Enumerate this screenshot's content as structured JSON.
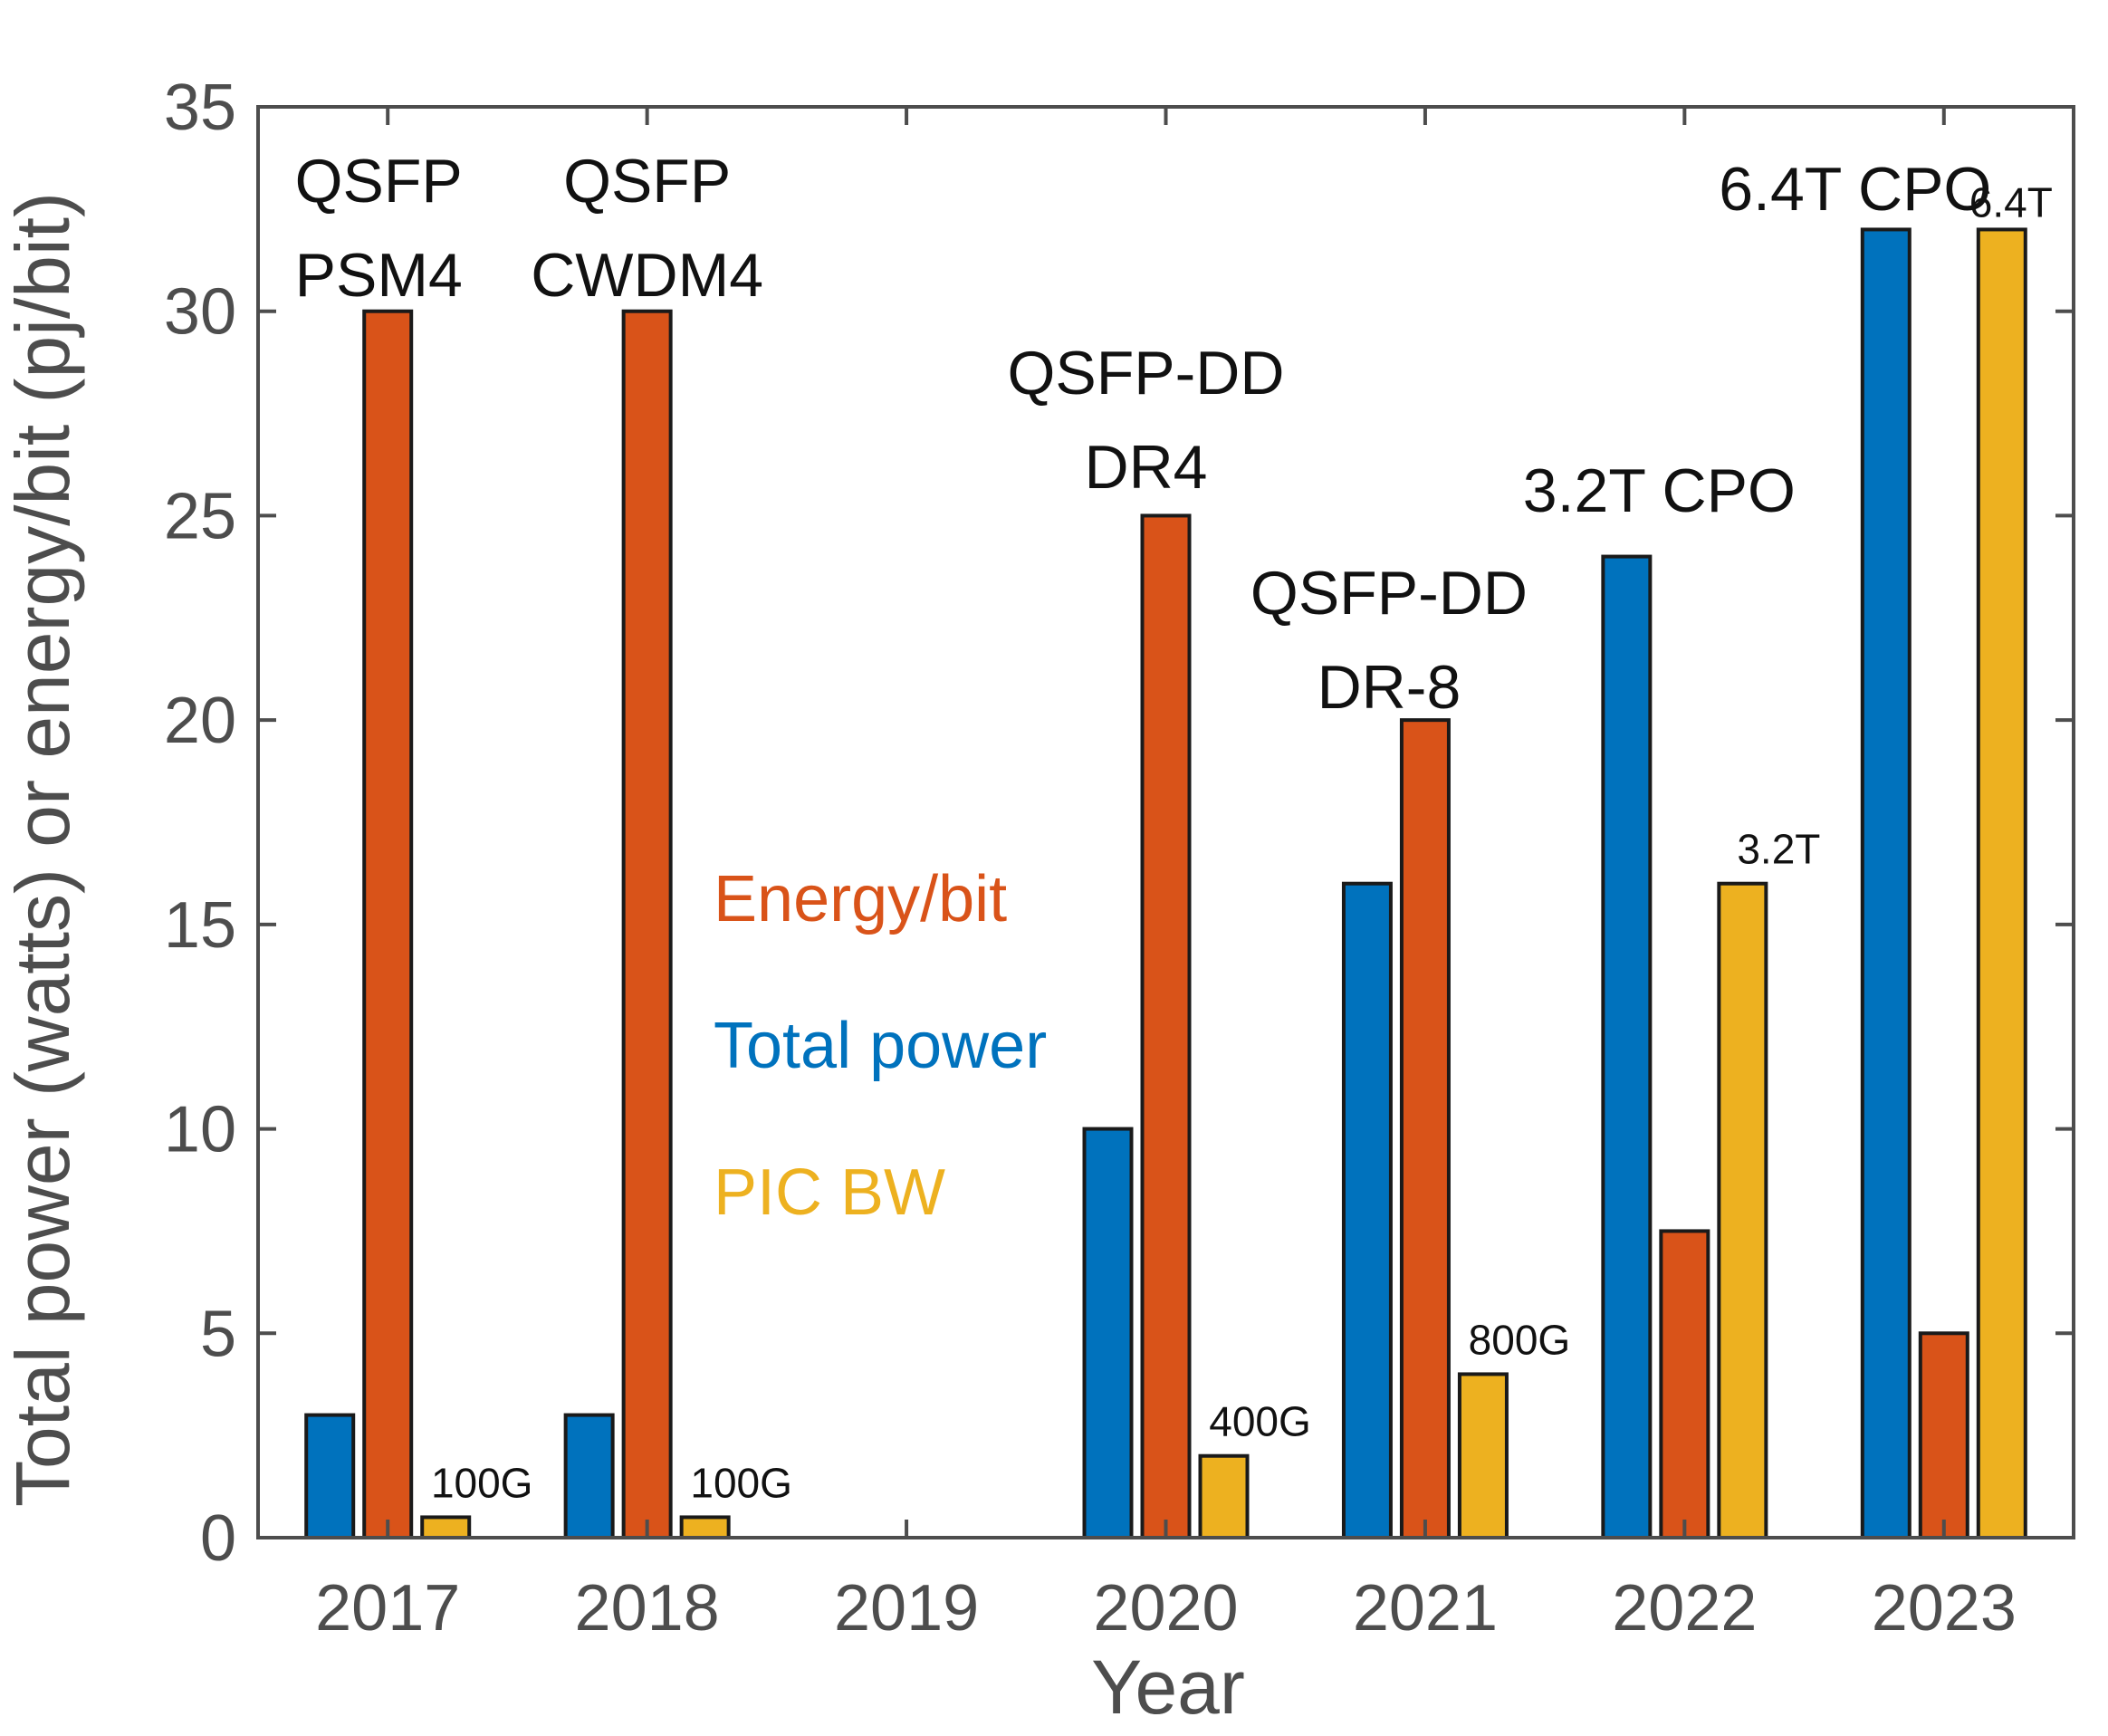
{
  "chart_data": {
    "type": "bar",
    "title": "",
    "xlabel": "Year",
    "ylabel": "Total power (watts) or energy/bit (pj/bit)",
    "categories": [
      "2017",
      "2018",
      "2019",
      "2020",
      "2021",
      "2022",
      "2023"
    ],
    "ylim": [
      0,
      35
    ],
    "yticks": [
      0,
      5,
      10,
      15,
      20,
      25,
      30,
      35
    ],
    "series": [
      {
        "name": "Total power",
        "color": "#0072BD",
        "values": [
          3,
          3,
          null,
          10,
          16,
          24,
          32
        ]
      },
      {
        "name": "Energy/bit",
        "color": "#D95319",
        "values": [
          30,
          30,
          null,
          25,
          20,
          7.5,
          5
        ]
      },
      {
        "name": "PIC BW",
        "color": "#EDB120",
        "values": [
          0.5,
          0.5,
          null,
          2,
          4,
          16,
          32
        ]
      }
    ],
    "legend": [
      {
        "label": "Energy/bit",
        "color": "#D95319"
      },
      {
        "label": "Total power",
        "color": "#0072BD"
      },
      {
        "label": "PIC BW",
        "color": "#EDB120"
      }
    ],
    "annotations": [
      {
        "lines": [
          "QSFP",
          "PSM4"
        ],
        "category": "2017"
      },
      {
        "lines": [
          "QSFP",
          "CWDM4"
        ],
        "category": "2018"
      },
      {
        "lines": [
          "QSFP-DD",
          "DR4"
        ],
        "category": "2020"
      },
      {
        "lines": [
          "QSFP-DD",
          "DR-8"
        ],
        "category": "2021"
      },
      {
        "lines": [
          "3.2T CPO"
        ],
        "category": "2022"
      },
      {
        "lines": [
          "6.4T CPO"
        ],
        "category": "2023"
      }
    ],
    "bar_labels": [
      {
        "text": "100G",
        "category": "2017",
        "series": "PIC BW"
      },
      {
        "text": "100G",
        "category": "2018",
        "series": "PIC BW"
      },
      {
        "text": "400G",
        "category": "2020",
        "series": "PIC BW"
      },
      {
        "text": "800G",
        "category": "2021",
        "series": "PIC BW"
      },
      {
        "text": "3.2T",
        "category": "2022",
        "series": "PIC BW"
      },
      {
        "text": "6.4T",
        "category": "2023",
        "series": "PIC BW"
      }
    ]
  }
}
